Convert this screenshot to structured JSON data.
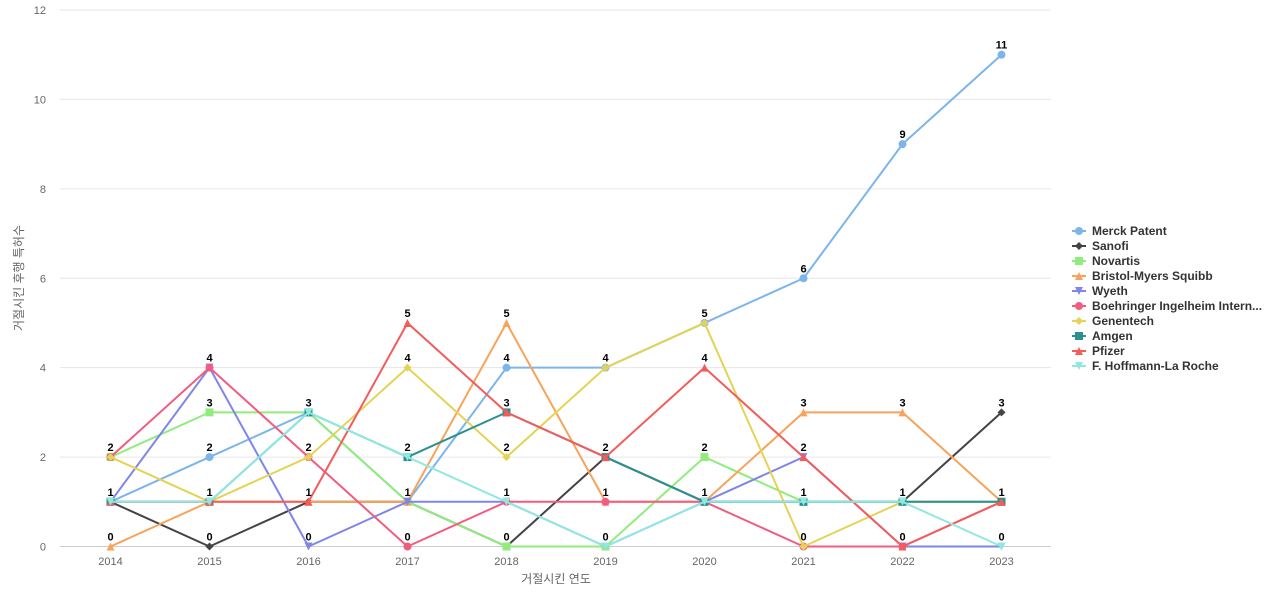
{
  "chart_data": {
    "type": "line",
    "title": "",
    "xlabel": "거절시킨 연도",
    "ylabel": "거절시킨 후행 특허수",
    "x": [
      "2014",
      "2015",
      "2016",
      "2017",
      "2018",
      "2019",
      "2020",
      "2021",
      "2022",
      "2023"
    ],
    "y_ticks": [
      "0",
      "2",
      "4",
      "6",
      "8",
      "10",
      "12"
    ],
    "ylim": [
      0,
      12
    ],
    "grid": true,
    "legend_position": "right",
    "series": [
      {
        "name": "Merck Patent",
        "color": "#7cb5ec",
        "marker": "circle",
        "values": [
          1,
          2,
          3,
          1,
          4,
          4,
          5,
          6,
          9,
          11
        ]
      },
      {
        "name": "Sanofi",
        "color": "#434348",
        "marker": "diamond",
        "values": [
          1,
          0,
          1,
          1,
          0,
          2,
          1,
          1,
          1,
          3
        ]
      },
      {
        "name": "Novartis",
        "color": "#90ed7d",
        "marker": "square",
        "values": [
          2,
          3,
          3,
          1,
          0,
          0,
          2,
          1,
          1,
          1
        ]
      },
      {
        "name": "Bristol-Myers Squibb",
        "color": "#f7a35c",
        "marker": "triangle",
        "values": [
          0,
          1,
          1,
          1,
          5,
          1,
          1,
          3,
          3,
          1
        ]
      },
      {
        "name": "Wyeth",
        "color": "#8085e9",
        "marker": "triangle-down",
        "values": [
          1,
          4,
          0,
          1,
          1,
          0,
          1,
          2,
          0,
          0
        ]
      },
      {
        "name": "Boehringer Ingelheim Intern...",
        "color": "#f15c80",
        "marker": "circle",
        "values": [
          2,
          4,
          2,
          0,
          1,
          1,
          1,
          0,
          0,
          1
        ]
      },
      {
        "name": "Genentech",
        "color": "#e4d354",
        "marker": "diamond",
        "values": [
          2,
          1,
          2,
          4,
          2,
          4,
          5,
          0,
          1,
          1
        ]
      },
      {
        "name": "Amgen",
        "color": "#2b908f",
        "marker": "square",
        "values": [
          1,
          1,
          3,
          2,
          3,
          2,
          1,
          1,
          1,
          1
        ]
      },
      {
        "name": "Pfizer",
        "color": "#f45b5b",
        "marker": "triangle",
        "values": [
          1,
          1,
          1,
          5,
          3,
          2,
          4,
          2,
          0,
          1
        ]
      },
      {
        "name": "F. Hoffmann-La Roche",
        "color": "#91e8e1",
        "marker": "triangle-down",
        "values": [
          1,
          1,
          3,
          2,
          1,
          0,
          1,
          1,
          1,
          0
        ]
      }
    ],
    "data_labels": [
      {
        "x": "2014",
        "y": 2,
        "text": "2"
      },
      {
        "x": "2014",
        "y": 1,
        "text": "1"
      },
      {
        "x": "2014",
        "y": 0,
        "text": "0"
      },
      {
        "x": "2015",
        "y": 4,
        "text": "4"
      },
      {
        "x": "2015",
        "y": 3,
        "text": "3"
      },
      {
        "x": "2015",
        "y": 2,
        "text": "2"
      },
      {
        "x": "2015",
        "y": 1,
        "text": "1"
      },
      {
        "x": "2015",
        "y": 0,
        "text": "0"
      },
      {
        "x": "2016",
        "y": 3,
        "text": "3"
      },
      {
        "x": "2016",
        "y": 2,
        "text": "2"
      },
      {
        "x": "2016",
        "y": 1,
        "text": "1"
      },
      {
        "x": "2016",
        "y": 0,
        "text": "0"
      },
      {
        "x": "2017",
        "y": 5,
        "text": "5"
      },
      {
        "x": "2017",
        "y": 4,
        "text": "4"
      },
      {
        "x": "2017",
        "y": 2,
        "text": "2"
      },
      {
        "x": "2017",
        "y": 1,
        "text": "1"
      },
      {
        "x": "2017",
        "y": 0,
        "text": "0"
      },
      {
        "x": "2018",
        "y": 5,
        "text": "5"
      },
      {
        "x": "2018",
        "y": 4,
        "text": "4"
      },
      {
        "x": "2018",
        "y": 3,
        "text": "3"
      },
      {
        "x": "2018",
        "y": 2,
        "text": "2"
      },
      {
        "x": "2018",
        "y": 1,
        "text": "1"
      },
      {
        "x": "2018",
        "y": 0,
        "text": "0"
      },
      {
        "x": "2019",
        "y": 4,
        "text": "4"
      },
      {
        "x": "2019",
        "y": 2,
        "text": "2"
      },
      {
        "x": "2019",
        "y": 1,
        "text": "1"
      },
      {
        "x": "2019",
        "y": 0,
        "text": "0"
      },
      {
        "x": "2020",
        "y": 5,
        "text": "5"
      },
      {
        "x": "2020",
        "y": 4,
        "text": "4"
      },
      {
        "x": "2020",
        "y": 2,
        "text": "2"
      },
      {
        "x": "2020",
        "y": 1,
        "text": "1"
      },
      {
        "x": "2021",
        "y": 6,
        "text": "6"
      },
      {
        "x": "2021",
        "y": 3,
        "text": "3"
      },
      {
        "x": "2021",
        "y": 2,
        "text": "2"
      },
      {
        "x": "2021",
        "y": 1,
        "text": "1"
      },
      {
        "x": "2021",
        "y": 0,
        "text": "0"
      },
      {
        "x": "2022",
        "y": 9,
        "text": "9"
      },
      {
        "x": "2022",
        "y": 3,
        "text": "3"
      },
      {
        "x": "2022",
        "y": 1,
        "text": "1"
      },
      {
        "x": "2022",
        "y": 0,
        "text": "0"
      },
      {
        "x": "2023",
        "y": 11,
        "text": "11"
      },
      {
        "x": "2023",
        "y": 3,
        "text": "3"
      },
      {
        "x": "2023",
        "y": 1,
        "text": "1"
      },
      {
        "x": "2023",
        "y": 0,
        "text": "0"
      }
    ]
  }
}
